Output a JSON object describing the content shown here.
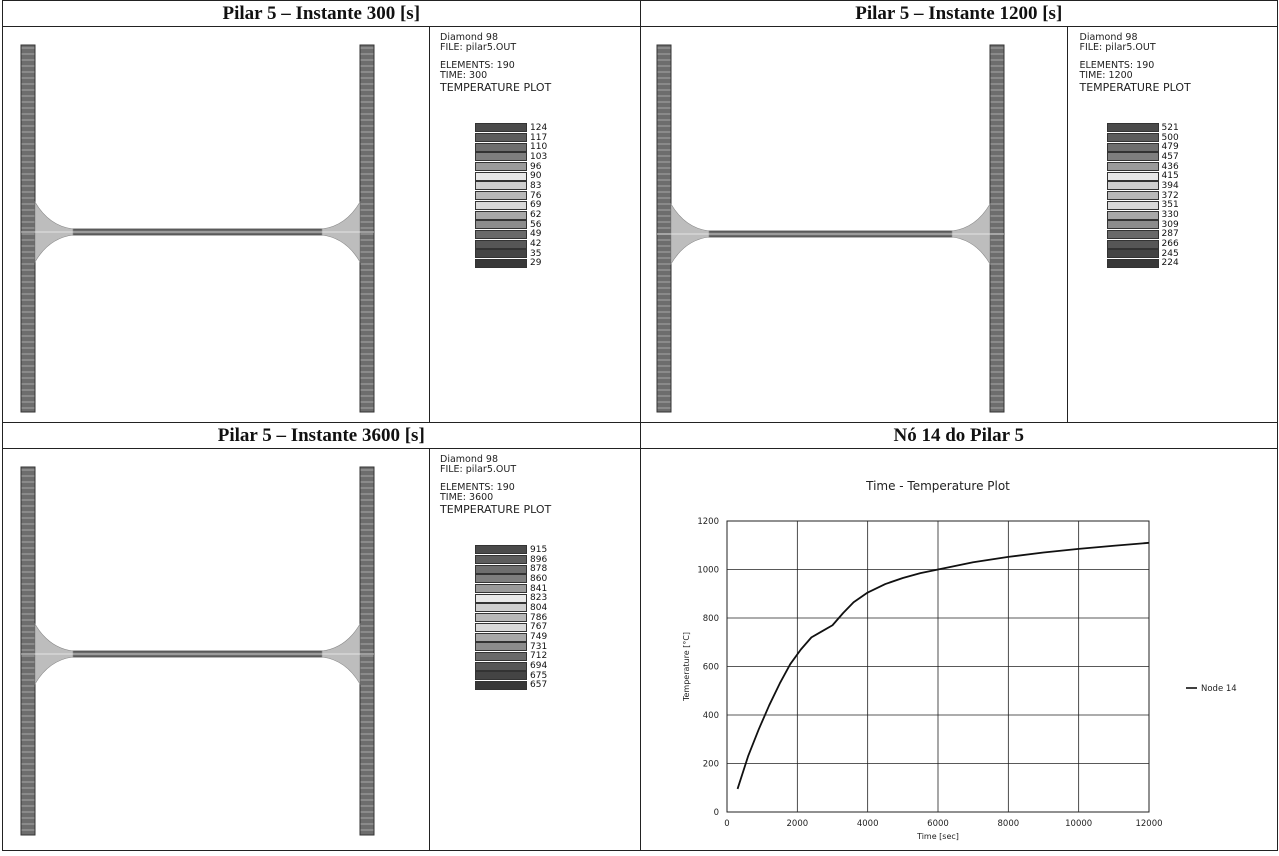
{
  "panels": [
    {
      "title": "Pilar 5 – Instante 300 [s]",
      "program": "Diamond 98",
      "file": "FILE: pilar5.OUT",
      "elements": "ELEMENTS: 190",
      "time": "TIME: 300",
      "plot_label": "TEMPERATURE PLOT",
      "legend": [
        "124",
        "117",
        "110",
        "103",
        "96",
        "90",
        "83",
        "76",
        "69",
        "62",
        "56",
        "49",
        "42",
        "35",
        "29"
      ]
    },
    {
      "title": "Pilar 5 – Instante 1200 [s]",
      "program": "Diamond 98",
      "file": "FILE: pilar5.OUT",
      "elements": "ELEMENTS: 190",
      "time": "TIME: 1200",
      "plot_label": "TEMPERATURE PLOT",
      "legend": [
        "521",
        "500",
        "479",
        "457",
        "436",
        "415",
        "394",
        "372",
        "351",
        "330",
        "309",
        "287",
        "266",
        "245",
        "224"
      ]
    },
    {
      "title": "Pilar 5 – Instante 3600 [s]",
      "program": "Diamond 98",
      "file": "FILE: pilar5.OUT",
      "elements": "ELEMENTS: 190",
      "time": "TIME: 3600",
      "plot_label": "TEMPERATURE PLOT",
      "legend": [
        "915",
        "896",
        "878",
        "860",
        "841",
        "823",
        "804",
        "786",
        "767",
        "749",
        "731",
        "712",
        "694",
        "675",
        "657"
      ]
    }
  ],
  "legend_colors": [
    "#4a4a4a",
    "#5c5c5c",
    "#6e6e6e",
    "#7e7e7e",
    "#9a9a9a",
    "#e8e8e8",
    "#cfcfcf",
    "#b8b8b8",
    "#d9d9d9",
    "#a8a8a8",
    "#8c8c8c",
    "#6a6a6a",
    "#565656",
    "#444444",
    "#383838"
  ],
  "chart_panel_title": "Nó 14 do Pilar 5",
  "chart_data": {
    "type": "line",
    "title": "Time - Temperature Plot",
    "xlabel": "Time [sec]",
    "ylabel": "Temperature [°C]",
    "xlim": [
      0,
      12000
    ],
    "ylim": [
      0,
      1200
    ],
    "xticks": [
      0,
      2000,
      4000,
      6000,
      8000,
      10000,
      12000
    ],
    "yticks": [
      0,
      200,
      400,
      600,
      800,
      1000,
      1200
    ],
    "grid": true,
    "legend_position": "right",
    "series": [
      {
        "name": "Node 14",
        "x": [
          300,
          600,
          900,
          1200,
          1500,
          1800,
          2100,
          2400,
          2700,
          3000,
          3300,
          3600,
          4000,
          4500,
          5000,
          5500,
          6000,
          7000,
          8000,
          9000,
          10000,
          11000,
          12000
        ],
        "y": [
          95,
          230,
          340,
          440,
          530,
          610,
          670,
          720,
          745,
          770,
          820,
          865,
          905,
          940,
          965,
          985,
          1000,
          1030,
          1052,
          1070,
          1085,
          1098,
          1110
        ]
      }
    ]
  }
}
